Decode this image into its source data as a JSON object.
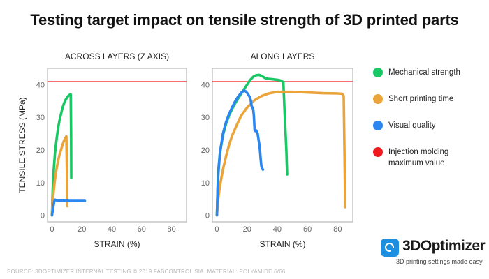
{
  "title": "Testing target impact on tensile strength of 3D printed parts",
  "source": "SOURCE: 3DOPTIMIZER INTERNAL TESTING © 2019 FABCONTROL SIA. MATERIAL: POLYAMIDE 6/66",
  "brand": {
    "name": "3DOptimizer",
    "tagline": "3D printing settings made easy",
    "color": "#1d8fe0"
  },
  "legend": [
    {
      "label": "Mechanical strength",
      "color": "#19c864"
    },
    {
      "label": "Short printing time",
      "color": "#eaa43a"
    },
    {
      "label": "Visual quality",
      "color": "#2c86f0"
    },
    {
      "label": "Injection molding maximum value",
      "color": "#f0191e"
    }
  ],
  "chart_data": [
    {
      "type": "line",
      "title": "ACROSS LAYERS (Z AXIS)",
      "xlabel": "STRAIN (%)",
      "ylabel": "TENSILE STRESS (MPa)",
      "xlim": [
        -3,
        90
      ],
      "ylim": [
        -2,
        45
      ],
      "xticks": [
        0,
        20,
        40,
        60,
        80
      ],
      "yticks": [
        0,
        10,
        20,
        30,
        40
      ],
      "reference_line": {
        "name": "Injection molding maximum value",
        "y": 41,
        "color": "#f0191e"
      },
      "series": [
        {
          "name": "Mechanical strength",
          "color": "#19c864",
          "x": [
            0,
            0.5,
            1,
            2,
            3,
            4,
            5,
            6,
            7,
            8,
            9,
            10,
            11,
            12,
            12.5,
            12.8,
            12.9
          ],
          "y": [
            0,
            8,
            13,
            19,
            23,
            26.5,
            29,
            31,
            32.8,
            34.2,
            35.3,
            36,
            36.6,
            37,
            37,
            25,
            11.5
          ]
        },
        {
          "name": "Short printing time",
          "color": "#eaa43a",
          "x": [
            0,
            0.5,
            1,
            2,
            3,
            4,
            5,
            6,
            7,
            8,
            9,
            9.6,
            10,
            10.2
          ],
          "y": [
            0,
            4,
            7,
            11,
            14,
            16.5,
            18.5,
            20,
            21.5,
            22.8,
            23.7,
            24.2,
            13,
            2.8
          ]
        },
        {
          "name": "Visual quality",
          "color": "#2c86f0",
          "x": [
            0,
            0.5,
            1,
            1.5,
            2,
            3,
            5,
            8,
            12,
            16,
            20,
            22
          ],
          "y": [
            0,
            1.5,
            3,
            4.2,
            4.8,
            4.6,
            4.5,
            4.5,
            4.4,
            4.4,
            4.4,
            4.4
          ]
        }
      ]
    },
    {
      "type": "line",
      "title": "ALONG LAYERS",
      "xlabel": "STRAIN (%)",
      "ylabel": "",
      "xlim": [
        -3,
        90
      ],
      "ylim": [
        -2,
        45
      ],
      "xticks": [
        0,
        20,
        40,
        60,
        80
      ],
      "yticks": [
        0,
        10,
        20,
        30,
        40
      ],
      "reference_line": {
        "name": "Injection molding maximum value",
        "y": 41,
        "color": "#f0191e"
      },
      "series": [
        {
          "name": "Mechanical strength",
          "color": "#19c864",
          "x": [
            0,
            0.5,
            1,
            2,
            4,
            6,
            8,
            10,
            12,
            14,
            16,
            18,
            20,
            22,
            24,
            26,
            28,
            30,
            32,
            34,
            36,
            38,
            40,
            42,
            44,
            45,
            46,
            46.5
          ],
          "y": [
            0,
            9,
            14,
            19,
            24.5,
            28,
            30.5,
            32.5,
            34.2,
            35.7,
            37.2,
            38.6,
            40,
            41.4,
            42.4,
            42.9,
            43,
            42.6,
            42,
            41.8,
            41.7,
            41.6,
            41.5,
            41.3,
            40.8,
            30,
            20,
            12.5
          ]
        },
        {
          "name": "Short printing time",
          "color": "#eaa43a",
          "x": [
            0,
            1,
            2,
            4,
            6,
            8,
            10,
            13,
            16,
            20,
            25,
            30,
            35,
            40,
            50,
            60,
            70,
            80,
            83,
            84,
            84.5,
            85
          ],
          "y": [
            0,
            5.5,
            9,
            14,
            18,
            21.5,
            24.3,
            27.5,
            30.5,
            33,
            35.3,
            36.6,
            37.4,
            37.8,
            37.8,
            37.6,
            37.4,
            37.3,
            37.2,
            36.5,
            20,
            2.5
          ]
        },
        {
          "name": "Visual quality",
          "color": "#2c86f0",
          "x": [
            0,
            0.5,
            1,
            2,
            4,
            6,
            8,
            10,
            12,
            14,
            16,
            18,
            19,
            20,
            21,
            22,
            22.5,
            23,
            23.5,
            24,
            24.5,
            25,
            25.5,
            26,
            26.5,
            27,
            28,
            28.5,
            29,
            29.5,
            30,
            30.5
          ],
          "y": [
            0,
            8,
            13,
            19,
            25,
            28.5,
            31,
            33,
            34.8,
            36.3,
            37.5,
            38.2,
            38,
            37.5,
            36.8,
            36,
            35,
            33.5,
            33,
            32.5,
            30.5,
            26,
            25.8,
            26,
            25.5,
            25,
            22,
            20,
            17,
            15,
            14.3,
            14
          ]
        }
      ]
    }
  ]
}
